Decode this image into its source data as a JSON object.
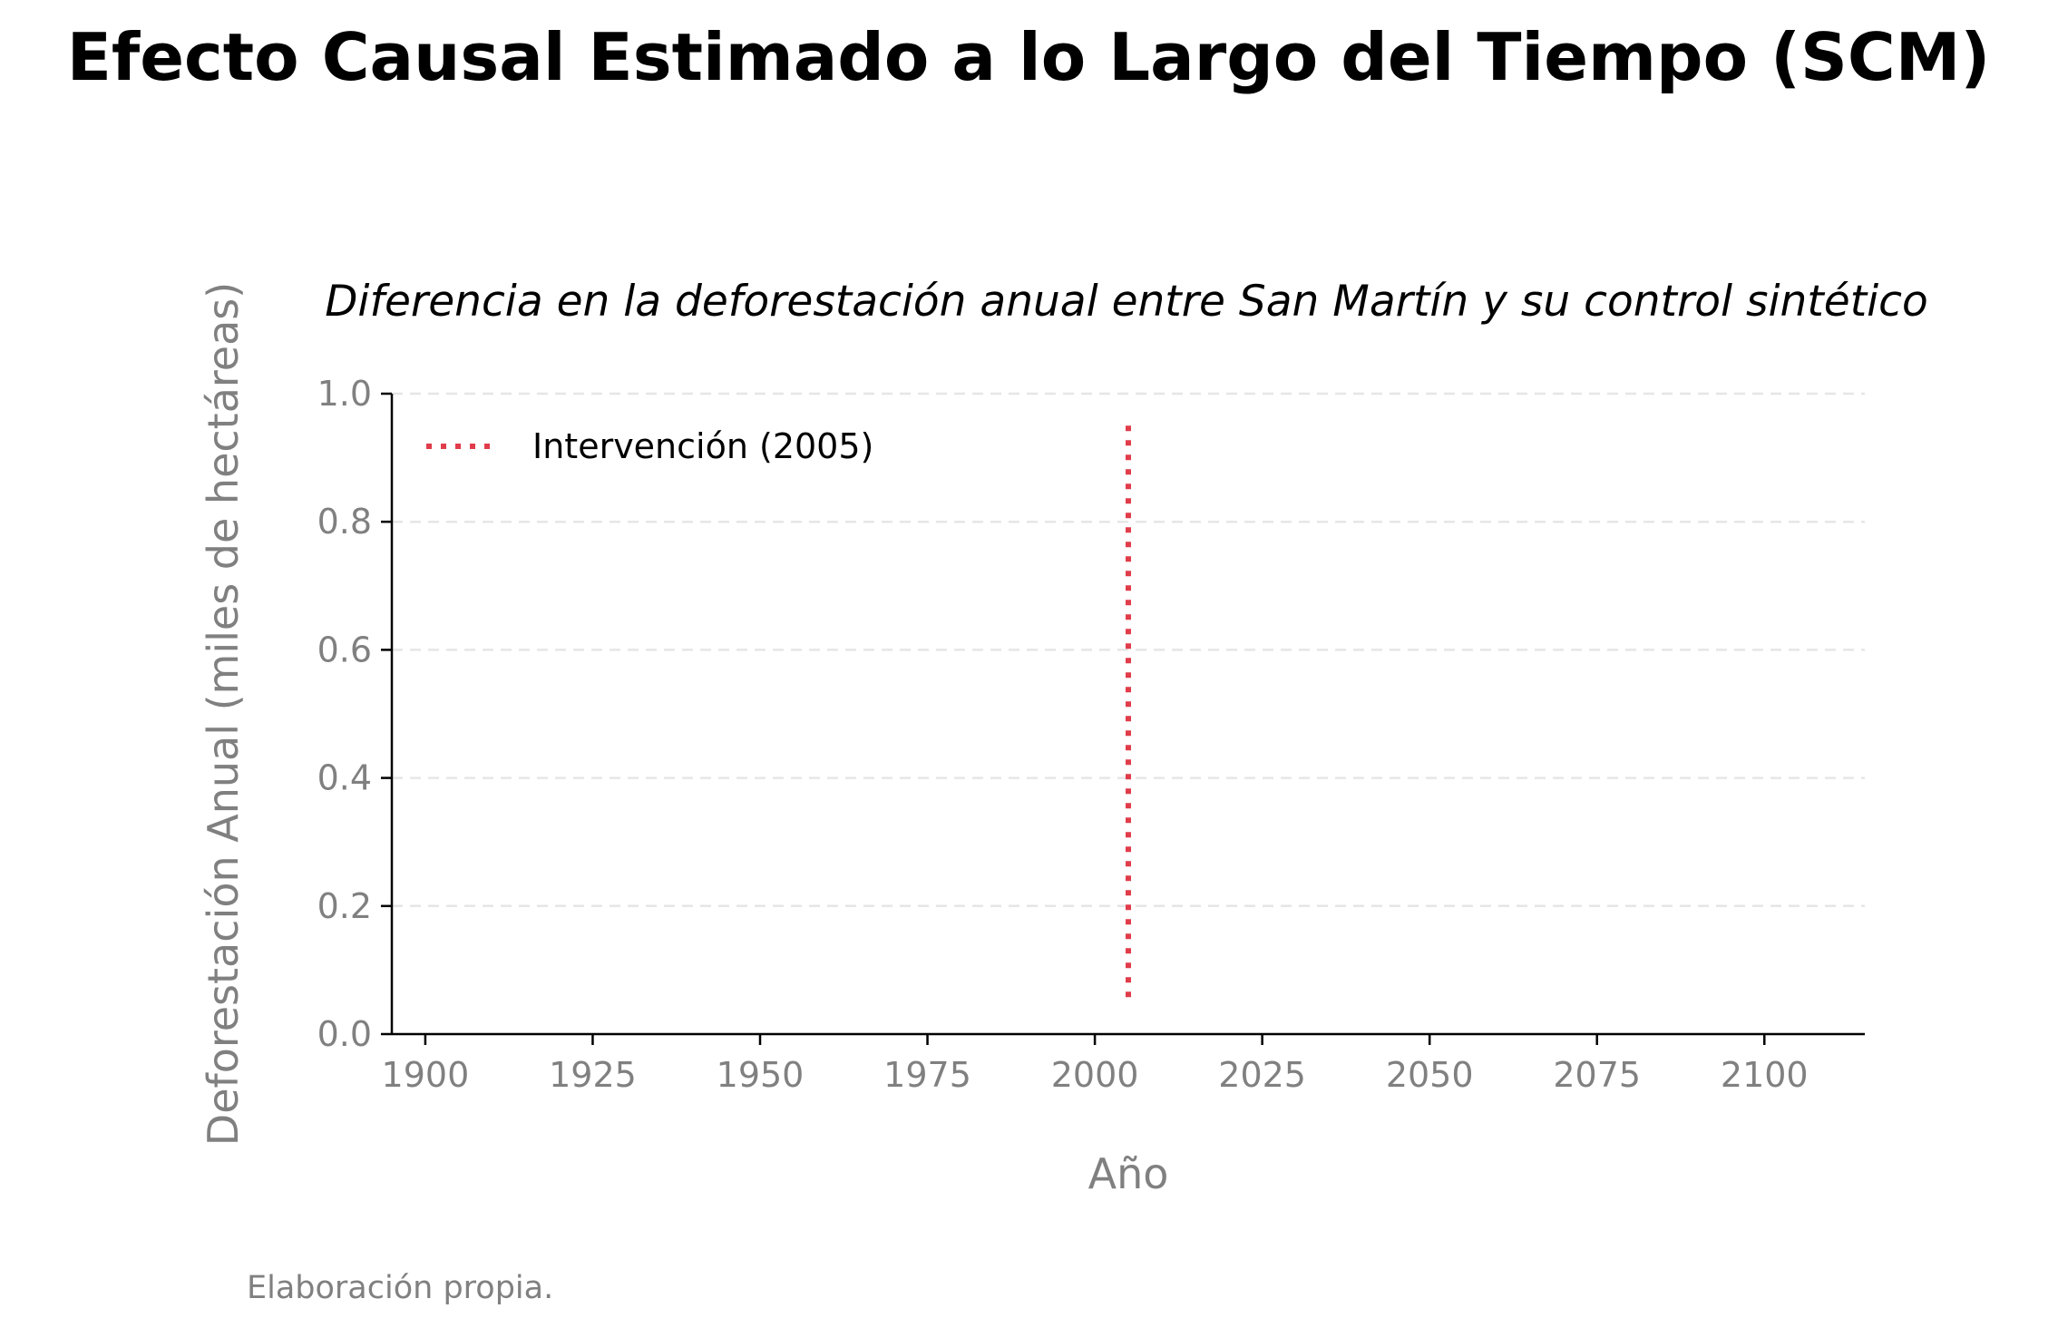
{
  "chart_data": {
    "type": "line",
    "title": "Efecto Causal Estimado a lo Largo del Tiempo (SCM)",
    "subtitle": "Diferencia en la deforestación anual entre San Martín y su control sintético",
    "xlabel": "Año",
    "ylabel": "Deforestación Anual (miles de hectáreas)",
    "caption": "Elaboración propia.",
    "xlim": [
      1895,
      2115
    ],
    "ylim": [
      0.0,
      1.0
    ],
    "x_ticks": [
      1900,
      1925,
      1950,
      1975,
      2000,
      2025,
      2050,
      2075,
      2100
    ],
    "x_tick_labels": [
      "1900",
      "1925",
      "1950",
      "1975",
      "2000",
      "2025",
      "2050",
      "2075",
      "2100"
    ],
    "y_ticks": [
      0.0,
      0.2,
      0.4,
      0.6,
      0.8,
      1.0
    ],
    "y_tick_labels": [
      "0.0",
      "0.2",
      "0.4",
      "0.6",
      "0.8",
      "1.0"
    ],
    "grid": "horizontal dashed",
    "series": [],
    "annotations": [
      {
        "kind": "vline",
        "x": 2005,
        "ymin": 0.05,
        "ymax": 0.95,
        "style": "dotted",
        "color": "#e03c4a",
        "label": "Intervención (2005)"
      }
    ],
    "legend": {
      "placement": "upper-left",
      "entries": [
        "Intervención (2005)"
      ]
    }
  },
  "colors": {
    "intervention": "#e03c4a",
    "grid": "#e6e6e6",
    "axis": "#000000",
    "muted_text": "#808080"
  }
}
